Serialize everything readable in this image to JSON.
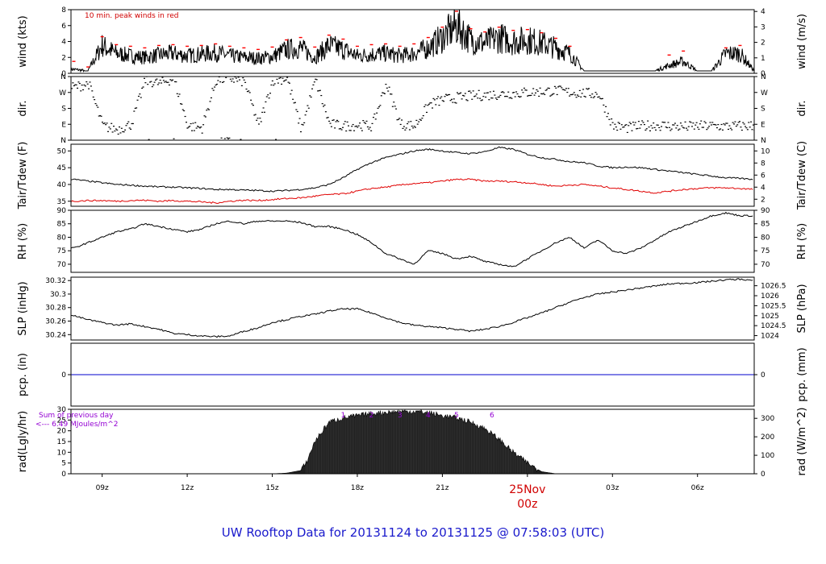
{
  "title": "UW Rooftop Data for 20131124  to  20131125 @ 07:58:03  (UTC)",
  "date_label": "25Nov",
  "date_sub": "00z",
  "wind_note": "10 min. peak winds in red",
  "rad_note_1": "Sum of previous day",
  "rad_note_2": "<--- 6.49 MJoules/m^2",
  "colors": {
    "series": "#000000",
    "peak": "#ff0000",
    "dewpoint": "#e00000",
    "precip": "#0000cc",
    "title": "#1a1acc",
    "purple": "#9400d3"
  },
  "chart_data": [
    {
      "type": "line",
      "name": "wind",
      "ylabel": "wind (kts)",
      "ylabel_right": "wind (m/s)",
      "ylim": [
        0,
        8
      ],
      "yticks": [
        0,
        2,
        4,
        6,
        8
      ],
      "yticks_right": [
        0,
        1,
        2,
        3,
        4
      ],
      "right_scale": 0.5144,
      "note": "10 min. peak winds in red",
      "x": [
        8.0,
        8.5,
        9.0,
        9.5,
        10.0,
        10.5,
        11.0,
        11.5,
        12.0,
        12.5,
        13.0,
        13.5,
        14.0,
        14.5,
        15.0,
        15.5,
        16.0,
        16.5,
        17.0,
        17.5,
        18.0,
        18.5,
        19.0,
        19.5,
        20.0,
        20.5,
        21.0,
        21.5,
        22.0,
        22.5,
        23.0,
        23.5,
        24.0,
        24.5,
        25.0,
        25.5,
        26.0,
        26.5,
        27.0,
        27.5,
        28.0,
        28.5,
        29.0,
        29.5,
        30.0,
        30.5,
        31.0,
        31.5,
        32.0
      ],
      "values": [
        0.5,
        0.3,
        3.5,
        2.5,
        2.2,
        2.0,
        2.3,
        2.5,
        2.2,
        2.4,
        2.6,
        2.2,
        2.0,
        1.9,
        2.1,
        3.0,
        3.2,
        2.0,
        3.5,
        3.0,
        2.2,
        2.4,
        2.5,
        2.2,
        2.5,
        3.2,
        4.5,
        6.0,
        4.2,
        3.8,
        4.5,
        4.0,
        4.2,
        3.8,
        3.2,
        2.5,
        0.3,
        0.3,
        0.3,
        0.3,
        0.3,
        0.3,
        1.0,
        1.5,
        0.3,
        0.3,
        2.5,
        2.5,
        0.3
      ],
      "peaks": [
        1.5,
        0.8,
        4.6,
        3.6,
        3.4,
        3.2,
        3.5,
        3.6,
        3.4,
        3.5,
        3.7,
        3.4,
        3.2,
        3.0,
        3.3,
        4.2,
        4.5,
        3.3,
        4.8,
        4.3,
        3.4,
        3.6,
        3.7,
        3.4,
        3.7,
        4.5,
        5.8,
        7.8,
        5.6,
        5.2,
        5.8,
        5.4,
        5.5,
        5.1,
        4.4,
        3.4,
        0.0,
        0.0,
        0.0,
        0.0,
        0.0,
        0.0,
        2.3,
        2.8,
        0.0,
        0.0,
        3.2,
        3.5,
        0.0
      ]
    },
    {
      "type": "scatter",
      "name": "direction",
      "ylabel": "dir.",
      "ylabel_right": "dir.",
      "yticks_labels": [
        "N",
        "E",
        "S",
        "W",
        "N"
      ],
      "ylim": [
        0,
        360
      ],
      "x": [
        8.0,
        8.5,
        9.0,
        9.5,
        10.0,
        10.5,
        11.0,
        11.5,
        12.0,
        12.5,
        13.0,
        13.5,
        14.0,
        14.5,
        15.0,
        15.5,
        16.0,
        16.5,
        17.0,
        17.5,
        18.0,
        18.5,
        19.0,
        19.5,
        20.0,
        20.5,
        21.0,
        21.5,
        22.0,
        22.5,
        23.0,
        23.5,
        24.0,
        24.5,
        25.0,
        25.5,
        26.0,
        26.5,
        27.0,
        27.5,
        28.0,
        28.5,
        29.0,
        29.5,
        30.0,
        30.5,
        31.0,
        31.5,
        32.0
      ],
      "values": [
        300,
        320,
        80,
        60,
        90,
        340,
        320,
        350,
        80,
        70,
        340,
        350,
        330,
        80,
        340,
        350,
        60,
        340,
        90,
        80,
        85,
        80,
        320,
        90,
        80,
        200,
        230,
        240,
        250,
        255,
        260,
        265,
        270,
        275,
        280,
        270,
        265,
        260,
        80,
        70,
        80,
        85,
        80,
        75,
        80,
        80,
        78,
        80,
        82
      ]
    },
    {
      "type": "line",
      "name": "temperature",
      "ylabel": "Tair/Tdew (F)",
      "ylabel_right": "Tair/Tdew (C)",
      "ylim": [
        33.5,
        52
      ],
      "yticks": [
        35,
        40,
        45,
        50
      ],
      "yticks_right": [
        2,
        4,
        6,
        8,
        10
      ],
      "series": [
        {
          "name": "Tair",
          "x": [
            8.0,
            8.5,
            9.0,
            9.5,
            10.0,
            10.5,
            11.0,
            11.5,
            12.0,
            12.5,
            13.0,
            13.5,
            14.0,
            14.5,
            15.0,
            15.5,
            16.0,
            16.5,
            17.0,
            17.5,
            18.0,
            18.5,
            19.0,
            19.5,
            20.0,
            20.5,
            21.0,
            21.5,
            22.0,
            22.5,
            23.0,
            23.5,
            24.0,
            24.5,
            25.0,
            25.5,
            26.0,
            26.5,
            27.0,
            27.5,
            28.0,
            28.5,
            29.0,
            29.5,
            30.0,
            30.5,
            31.0,
            31.5,
            32.0
          ],
          "values": [
            41.5,
            41.0,
            40.5,
            40.0,
            39.8,
            39.5,
            39.3,
            39.2,
            39.0,
            38.8,
            38.5,
            38.5,
            38.3,
            38.2,
            38.0,
            38.2,
            38.5,
            39.0,
            40.0,
            42.0,
            44.5,
            46.5,
            48.0,
            49.0,
            50.0,
            50.5,
            50.0,
            49.5,
            49.2,
            49.8,
            51.0,
            50.5,
            49.0,
            48.0,
            47.5,
            46.8,
            46.5,
            45.5,
            45.0,
            45.2,
            45.0,
            44.5,
            44.0,
            43.5,
            43.0,
            42.5,
            42.0,
            41.8,
            41.5
          ]
        },
        {
          "name": "Tdew",
          "x": [
            8.0,
            8.5,
            9.0,
            9.5,
            10.0,
            10.5,
            11.0,
            11.5,
            12.0,
            12.5,
            13.0,
            13.5,
            14.0,
            14.5,
            15.0,
            15.5,
            16.0,
            16.5,
            17.0,
            17.5,
            18.0,
            18.5,
            19.0,
            19.5,
            20.0,
            20.5,
            21.0,
            21.5,
            22.0,
            22.5,
            23.0,
            23.5,
            24.0,
            24.5,
            25.0,
            25.5,
            26.0,
            26.5,
            27.0,
            27.5,
            28.0,
            28.5,
            29.0,
            29.5,
            30.0,
            30.5,
            31.0,
            31.5,
            32.0
          ],
          "values": [
            35.0,
            35.2,
            35.2,
            35.0,
            35.2,
            35.3,
            35.0,
            35.2,
            35.0,
            34.8,
            34.5,
            35.0,
            35.3,
            35.2,
            35.5,
            35.8,
            36.0,
            36.5,
            37.0,
            37.2,
            38.0,
            38.8,
            39.2,
            39.8,
            40.3,
            40.5,
            41.0,
            41.5,
            41.5,
            41.0,
            41.0,
            40.8,
            40.5,
            40.0,
            39.5,
            39.8,
            40.0,
            39.5,
            39.0,
            38.5,
            38.0,
            37.5,
            38.0,
            38.5,
            38.8,
            39.0,
            39.0,
            38.8,
            38.5
          ]
        }
      ]
    },
    {
      "type": "line",
      "name": "relative-humidity",
      "ylabel": "RH (%)",
      "ylabel_right": "RH (%)",
      "ylim": [
        67,
        90
      ],
      "yticks": [
        70,
        75,
        80,
        85,
        90
      ],
      "yticks_right": [
        70,
        75,
        80,
        85,
        90
      ],
      "x": [
        8.0,
        8.5,
        9.0,
        9.5,
        10.0,
        10.5,
        11.0,
        11.5,
        12.0,
        12.5,
        13.0,
        13.5,
        14.0,
        14.5,
        15.0,
        15.5,
        16.0,
        16.5,
        17.0,
        17.5,
        18.0,
        18.5,
        19.0,
        19.5,
        20.0,
        20.5,
        21.0,
        21.5,
        22.0,
        22.5,
        23.0,
        23.5,
        24.0,
        24.5,
        25.0,
        25.5,
        26.0,
        26.5,
        27.0,
        27.5,
        28.0,
        28.5,
        29.0,
        29.5,
        30.0,
        30.5,
        31.0,
        31.5,
        32.0
      ],
      "values": [
        76,
        78,
        80,
        82,
        83,
        85,
        84,
        83,
        82,
        83,
        85,
        86,
        85,
        86,
        86,
        86,
        85.5,
        84,
        84,
        83,
        81,
        78,
        74,
        72,
        70,
        75,
        74,
        72,
        73,
        71,
        70,
        69,
        72,
        75,
        78,
        80,
        76,
        79,
        75,
        74,
        76,
        79,
        82,
        84,
        86,
        88,
        89,
        88,
        88
      ]
    },
    {
      "type": "line",
      "name": "sea-level-pressure",
      "ylabel": "SLP (inHg)",
      "ylabel_right": "SLP (hPa)",
      "ylim": [
        30.232,
        30.325
      ],
      "yticks": [
        30.24,
        30.26,
        30.28,
        30.3,
        30.32
      ],
      "yticks_right_labels": [
        "1024",
        "1024.5",
        "1025",
        "1025.5",
        "1026",
        "1026.5"
      ],
      "yticks_right_values": [
        1024,
        1024.5,
        1025,
        1025.5,
        1026,
        1026.5
      ],
      "x": [
        8.0,
        8.5,
        9.0,
        9.5,
        10.0,
        10.5,
        11.0,
        11.5,
        12.0,
        12.5,
        13.0,
        13.5,
        14.0,
        14.5,
        15.0,
        15.5,
        16.0,
        16.5,
        17.0,
        17.5,
        18.0,
        18.5,
        19.0,
        19.5,
        20.0,
        20.5,
        21.0,
        21.5,
        22.0,
        22.5,
        23.0,
        23.5,
        24.0,
        24.5,
        25.0,
        25.5,
        26.0,
        26.5,
        27.0,
        27.5,
        28.0,
        28.5,
        29.0,
        29.5,
        30.0,
        30.5,
        31.0,
        31.5,
        32.0
      ],
      "values": [
        30.268,
        30.262,
        30.258,
        30.254,
        30.256,
        30.252,
        30.248,
        30.242,
        30.24,
        30.238,
        30.237,
        30.238,
        30.245,
        30.25,
        30.258,
        30.262,
        30.267,
        30.27,
        30.275,
        30.278,
        30.278,
        30.272,
        30.265,
        30.258,
        30.254,
        30.252,
        30.25,
        30.248,
        30.245,
        30.248,
        30.252,
        30.258,
        30.265,
        30.272,
        30.28,
        30.288,
        30.295,
        30.3,
        30.303,
        30.306,
        30.309,
        30.312,
        30.315,
        30.316,
        30.317,
        30.319,
        30.321,
        30.322,
        30.32
      ]
    },
    {
      "type": "line",
      "name": "precipitation",
      "ylabel": "pcp. (in)",
      "ylabel_right": "pcp. (mm)",
      "ylim": [
        -1,
        1
      ],
      "yticks": [
        0
      ],
      "yticks_right": [
        0
      ],
      "x": [
        8.0,
        32.0
      ],
      "values": [
        0,
        0
      ]
    },
    {
      "type": "area",
      "name": "solar-radiation",
      "ylabel": "rad(Lgly/hr)",
      "ylabel_right": "rad (W/m^2)",
      "ylim": [
        0,
        30
      ],
      "yticks": [
        0,
        5,
        10,
        15,
        20,
        25,
        30
      ],
      "yticks_right": [
        0,
        100,
        200,
        300
      ],
      "right_scale": 11.63,
      "hour_marks": [
        {
          "label": "1",
          "x": 17.5
        },
        {
          "label": "2",
          "x": 18.5
        },
        {
          "label": "3",
          "x": 19.5
        },
        {
          "label": "4",
          "x": 20.5
        },
        {
          "label": "5",
          "x": 21.5
        },
        {
          "label": "6",
          "x": 22.75
        }
      ],
      "x": [
        15.0,
        15.5,
        16.0,
        16.2,
        16.5,
        17.0,
        17.5,
        18.0,
        18.5,
        19.0,
        19.5,
        20.0,
        20.5,
        21.0,
        21.5,
        22.0,
        22.5,
        23.0,
        23.5,
        24.0,
        24.5,
        25.0
      ],
      "values": [
        0,
        0.3,
        1.5,
        5,
        15,
        24,
        26,
        27,
        28,
        28.5,
        29,
        29,
        28.5,
        27,
        26,
        24,
        21,
        16,
        10,
        5,
        1,
        0
      ]
    }
  ],
  "x_axis": {
    "xlim": [
      7.9,
      32.0
    ],
    "ticks": [
      {
        "label": "09z",
        "x": 9
      },
      {
        "label": "12z",
        "x": 12
      },
      {
        "label": "15z",
        "x": 15
      },
      {
        "label": "18z",
        "x": 18
      },
      {
        "label": "21z",
        "x": 21
      },
      {
        "label": "00z",
        "x": 24
      },
      {
        "label": "03z",
        "x": 27
      },
      {
        "label": "06z",
        "x": 30
      }
    ]
  }
}
